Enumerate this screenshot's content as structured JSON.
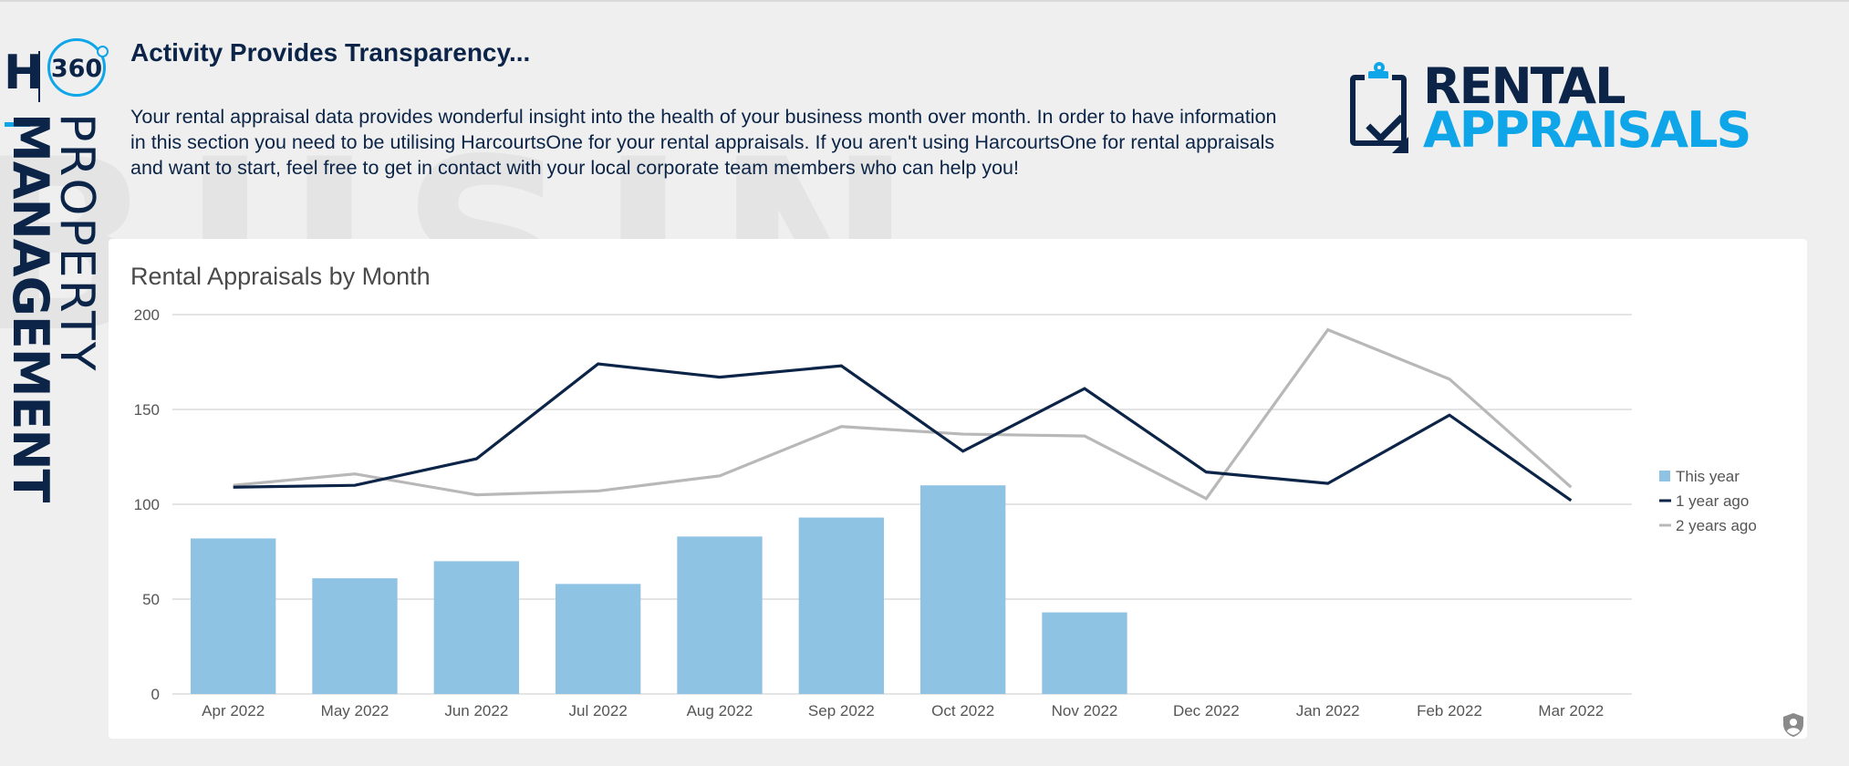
{
  "header": {
    "title": "Activity Provides Transparency...",
    "intro": "Your rental appraisal data provides wonderful insight into the health of your business month over month. In order to have information in this section you need to be utilising HarcourtsOne for your rental appraisals. If you aren't using HarcourtsOne for rental appraisals and want to start, feel free to get in contact with your local corporate team members who can help you!"
  },
  "brand": {
    "letter": "H",
    "badge": "360",
    "word_bold": "MANAGEMENT",
    "word_light": "PROPERTY"
  },
  "logo": {
    "line1": "RENTAL",
    "line2": "APPRAISALS"
  },
  "icons": {
    "privacy": "privacy-shield-icon",
    "clipboard": "clipboard-check-icon"
  },
  "colors": {
    "navy": "#0b2447",
    "accent": "#0ea5e9",
    "bar": "#8fc3e4",
    "line_1yr": "#0b2447",
    "line_2yr": "#b8b8b8"
  },
  "chart_data": {
    "type": "bar",
    "title": "Rental Appraisals by Month",
    "categories": [
      "Apr 2022",
      "May 2022",
      "Jun 2022",
      "Jul 2022",
      "Aug 2022",
      "Sep 2022",
      "Oct 2022",
      "Nov 2022",
      "Dec 2022",
      "Jan 2022",
      "Feb 2022",
      "Mar 2022"
    ],
    "series": [
      {
        "name": "This year",
        "type": "bar",
        "values": [
          82,
          61,
          70,
          58,
          83,
          93,
          110,
          43,
          null,
          null,
          null,
          null
        ]
      },
      {
        "name": "1 year ago",
        "type": "line",
        "values": [
          109,
          110,
          124,
          174,
          167,
          173,
          128,
          161,
          117,
          111,
          147,
          102
        ]
      },
      {
        "name": "2 years ago",
        "type": "line",
        "values": [
          110,
          116,
          105,
          107,
          115,
          141,
          137,
          136,
          103,
          192,
          166,
          109
        ]
      }
    ],
    "yticks": [
      0,
      50,
      100,
      150,
      200
    ],
    "ylim": [
      0,
      200
    ],
    "xlabel": "",
    "ylabel": "",
    "grid": true,
    "legend_position": "right"
  }
}
